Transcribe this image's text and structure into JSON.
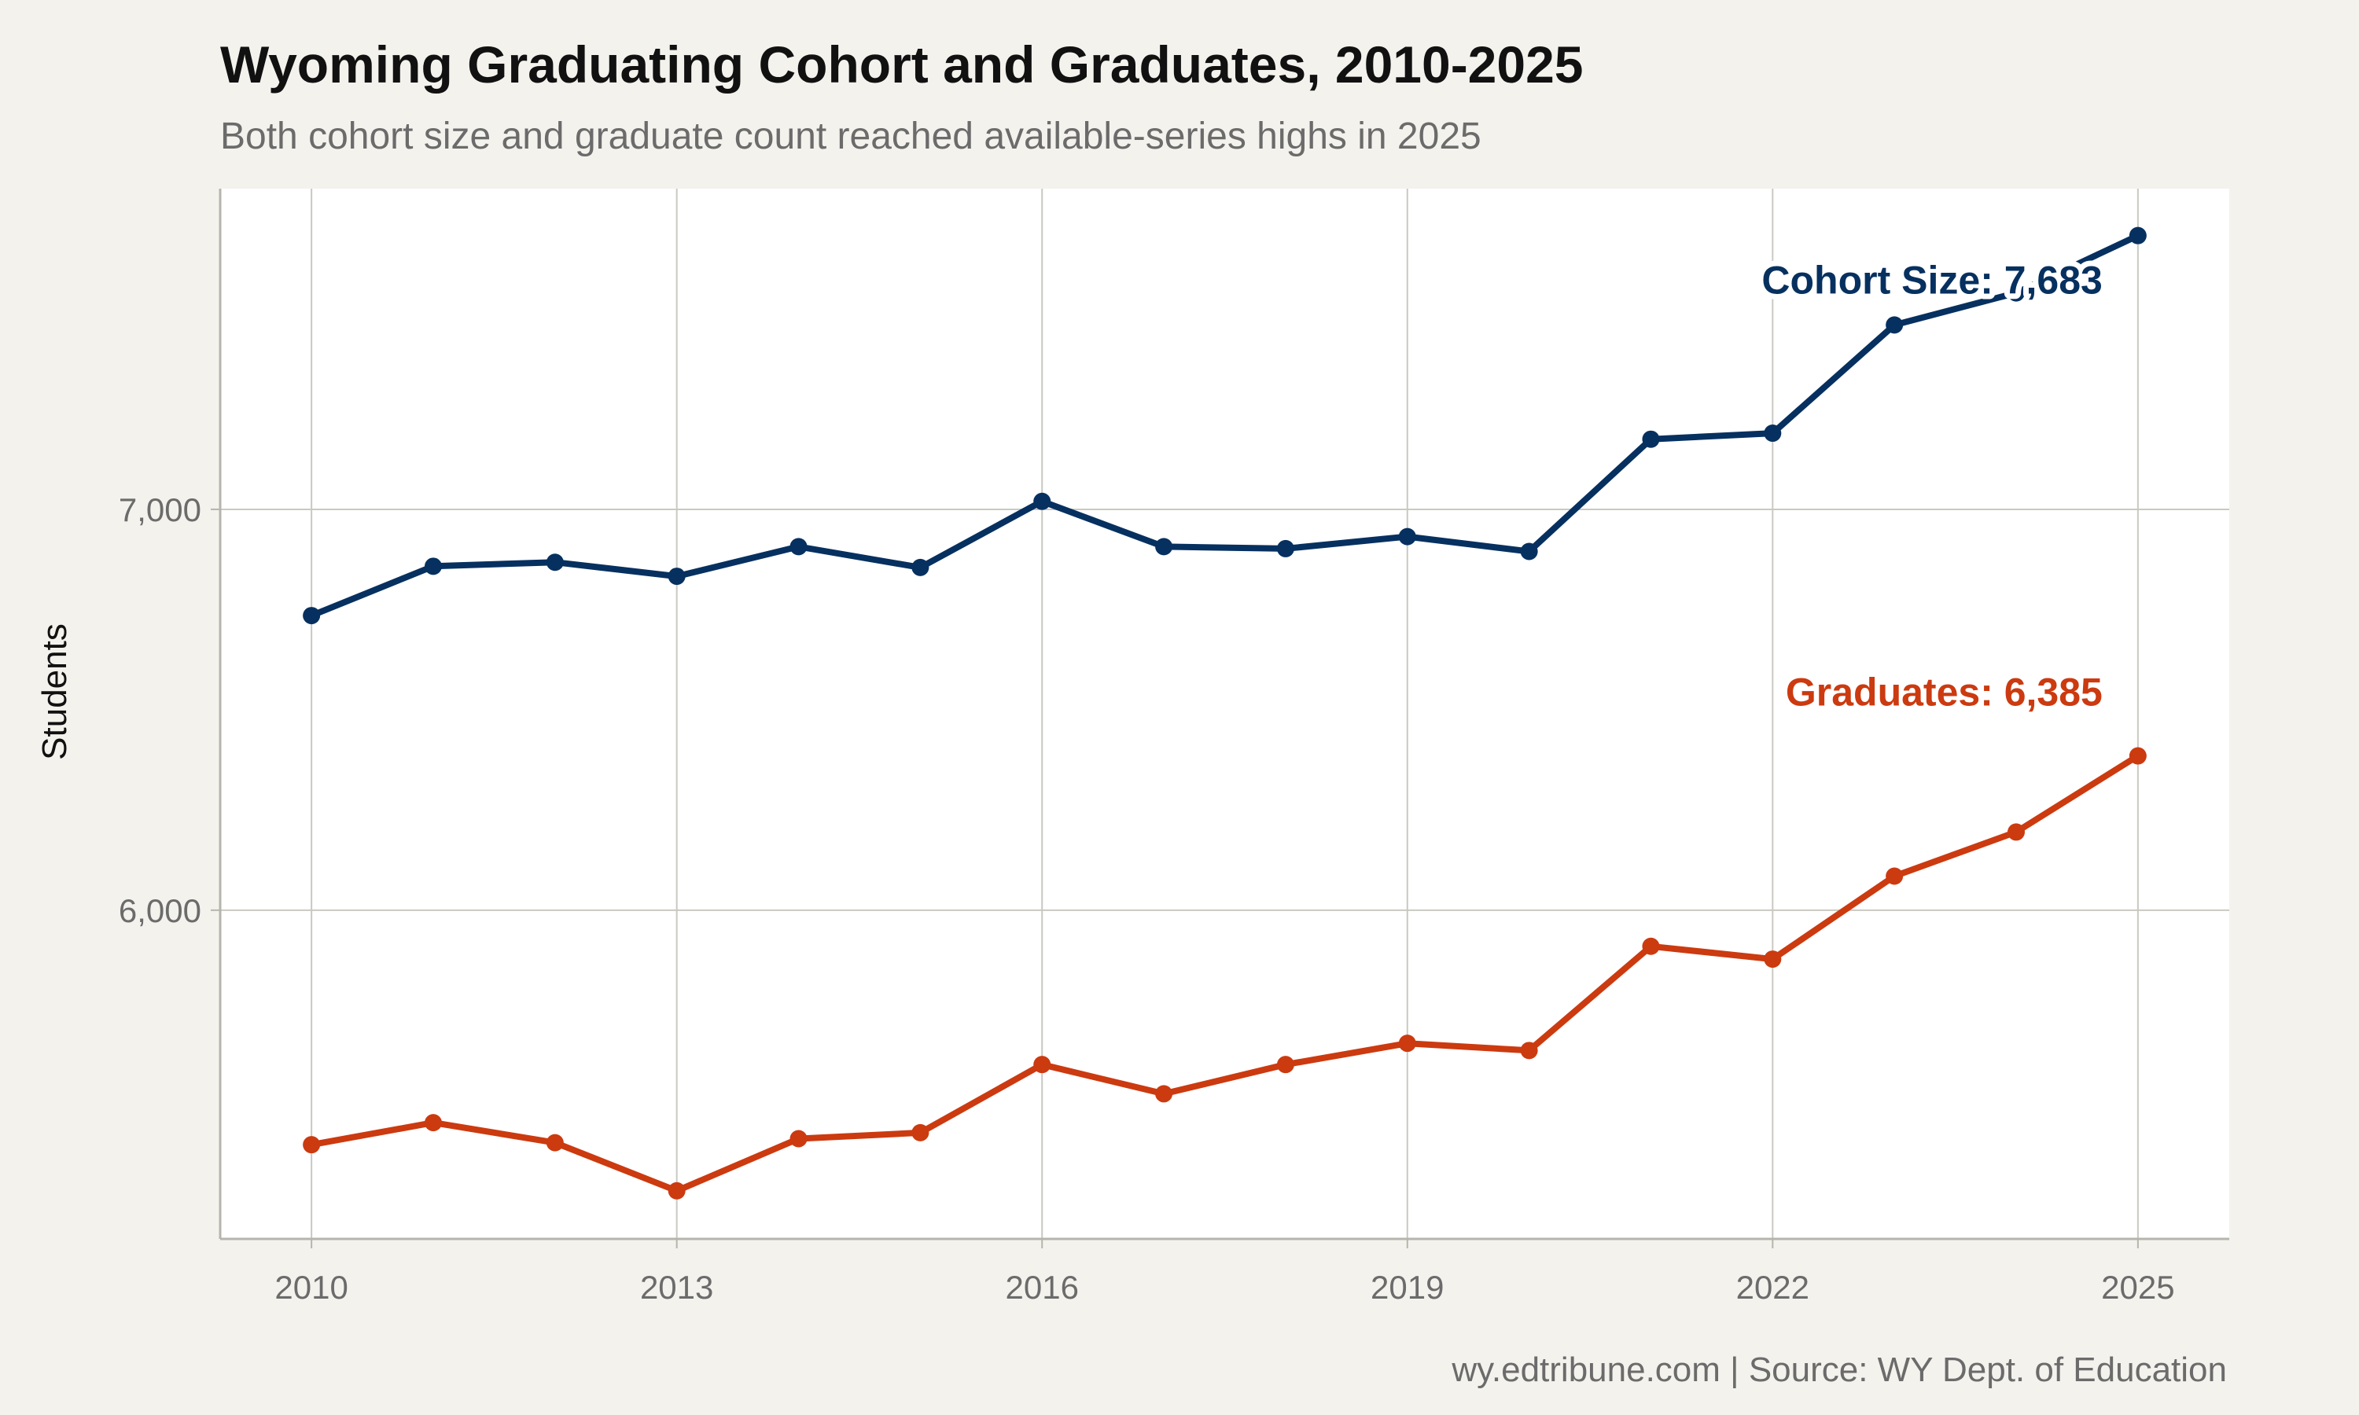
{
  "chart_data": {
    "type": "line",
    "title": "Wyoming Graduating Cohort and Graduates, 2010-2025",
    "subtitle": "Both cohort size and graduate count reached available-series highs in 2025",
    "ylabel": "Students",
    "xlabel": "",
    "caption": "wy.edtribune.com | Source: WY Dept. of Education",
    "x": [
      2010,
      2011,
      2012,
      2013,
      2014,
      2015,
      2016,
      2017,
      2018,
      2019,
      2020,
      2021,
      2022,
      2023,
      2024,
      2025
    ],
    "x_ticks": [
      2010,
      2013,
      2016,
      2019,
      2022,
      2025
    ],
    "x_tick_labels": [
      "2010",
      "2013",
      "2016",
      "2019",
      "2022",
      "2025"
    ],
    "y_ticks": [
      6000,
      7000
    ],
    "y_tick_labels": [
      "6,000",
      "7,000"
    ],
    "xlim": [
      2009.25,
      2025.75
    ],
    "ylim": [
      5180,
      7800
    ],
    "grid": true,
    "series": [
      {
        "key": "cohort",
        "color": "#06305f",
        "values": [
          6735,
          6858,
          6868,
          6833,
          6907,
          6855,
          7020,
          6907,
          6902,
          6932,
          6895,
          7175,
          7190,
          7460,
          7540,
          7683
        ],
        "end_label": "Cohort Size: 7,683"
      },
      {
        "key": "graduates",
        "color": "#cc3a10",
        "values": [
          5415,
          5470,
          5420,
          5300,
          5430,
          5445,
          5615,
          5542,
          5615,
          5668,
          5650,
          5910,
          5878,
          6085,
          6195,
          6385
        ],
        "end_label": "Graduates: 6,385"
      }
    ]
  }
}
